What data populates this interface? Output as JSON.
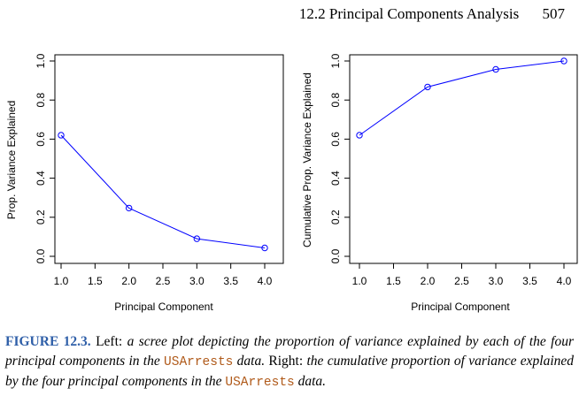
{
  "header": {
    "section": "12.2 Principal Components Analysis",
    "page_number": "507"
  },
  "colors": {
    "series": "#0000ff",
    "axis": "#000000",
    "figure_label": "#2f5fa8",
    "dataset_name": "#b05a1a"
  },
  "chart_data": [
    {
      "type": "line",
      "xlabel": "Principal Component",
      "ylabel": "Prop. Variance Explained",
      "x": [
        1,
        2,
        3,
        4
      ],
      "values": [
        0.62,
        0.247,
        0.09,
        0.043
      ],
      "xlim": [
        1.0,
        4.0
      ],
      "ylim": [
        0.0,
        1.0
      ],
      "xticks": [
        "1.0",
        "1.5",
        "2.0",
        "2.5",
        "3.0",
        "3.5",
        "4.0"
      ],
      "yticks": [
        "0.0",
        "0.2",
        "0.4",
        "0.6",
        "0.8",
        "1.0"
      ],
      "grid": false,
      "marker": "open-circle"
    },
    {
      "type": "line",
      "xlabel": "Principal Component",
      "ylabel": "Cumulative Prop. Variance Explained",
      "x": [
        1,
        2,
        3,
        4
      ],
      "values": [
        0.62,
        0.867,
        0.957,
        1.0
      ],
      "xlim": [
        1.0,
        4.0
      ],
      "ylim": [
        0.0,
        1.0
      ],
      "xticks": [
        "1.0",
        "1.5",
        "2.0",
        "2.5",
        "3.0",
        "3.5",
        "4.0"
      ],
      "yticks": [
        "0.0",
        "0.2",
        "0.4",
        "0.6",
        "0.8",
        "1.0"
      ],
      "grid": false,
      "marker": "open-circle"
    }
  ],
  "caption": {
    "label": "FIGURE 12.3.",
    "part1": "Left:",
    "part2": "a scree plot depicting the proportion of variance explained by each of the four principal components in the",
    "dataset1": "USArrests",
    "part3": "data.",
    "part4": "Right:",
    "part5": "the cumulative proportion of variance explained by the four principal components in the",
    "dataset2": "USArrests",
    "part6": "data."
  }
}
